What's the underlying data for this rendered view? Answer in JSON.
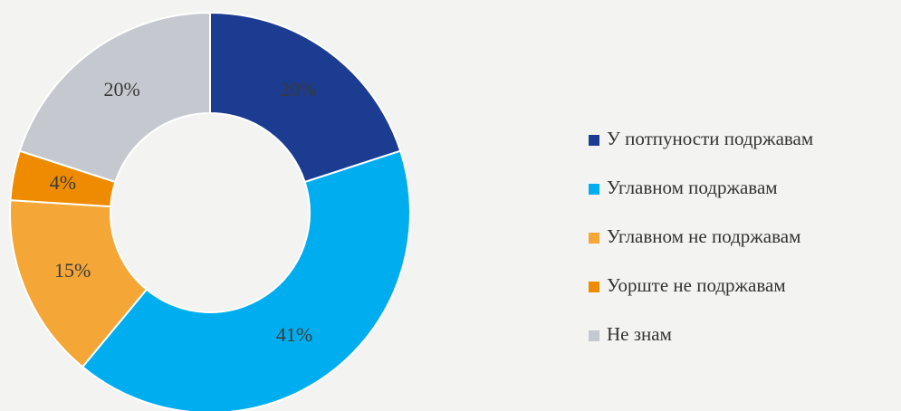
{
  "chart_data": {
    "type": "donut",
    "categories": [
      "У потпуности подржавам",
      "Углавном подржавам",
      "Углавном не подржавам",
      "Уорште не подржавам",
      "Не знам"
    ],
    "values": [
      20,
      41,
      15,
      4,
      20
    ],
    "value_labels": [
      "20%",
      "41%",
      "15%",
      "4%",
      "20%"
    ],
    "colors": [
      "#1c3c91",
      "#00aeef",
      "#f4a637",
      "#ef8b00",
      "#c5c8ce"
    ],
    "legend": "right"
  }
}
